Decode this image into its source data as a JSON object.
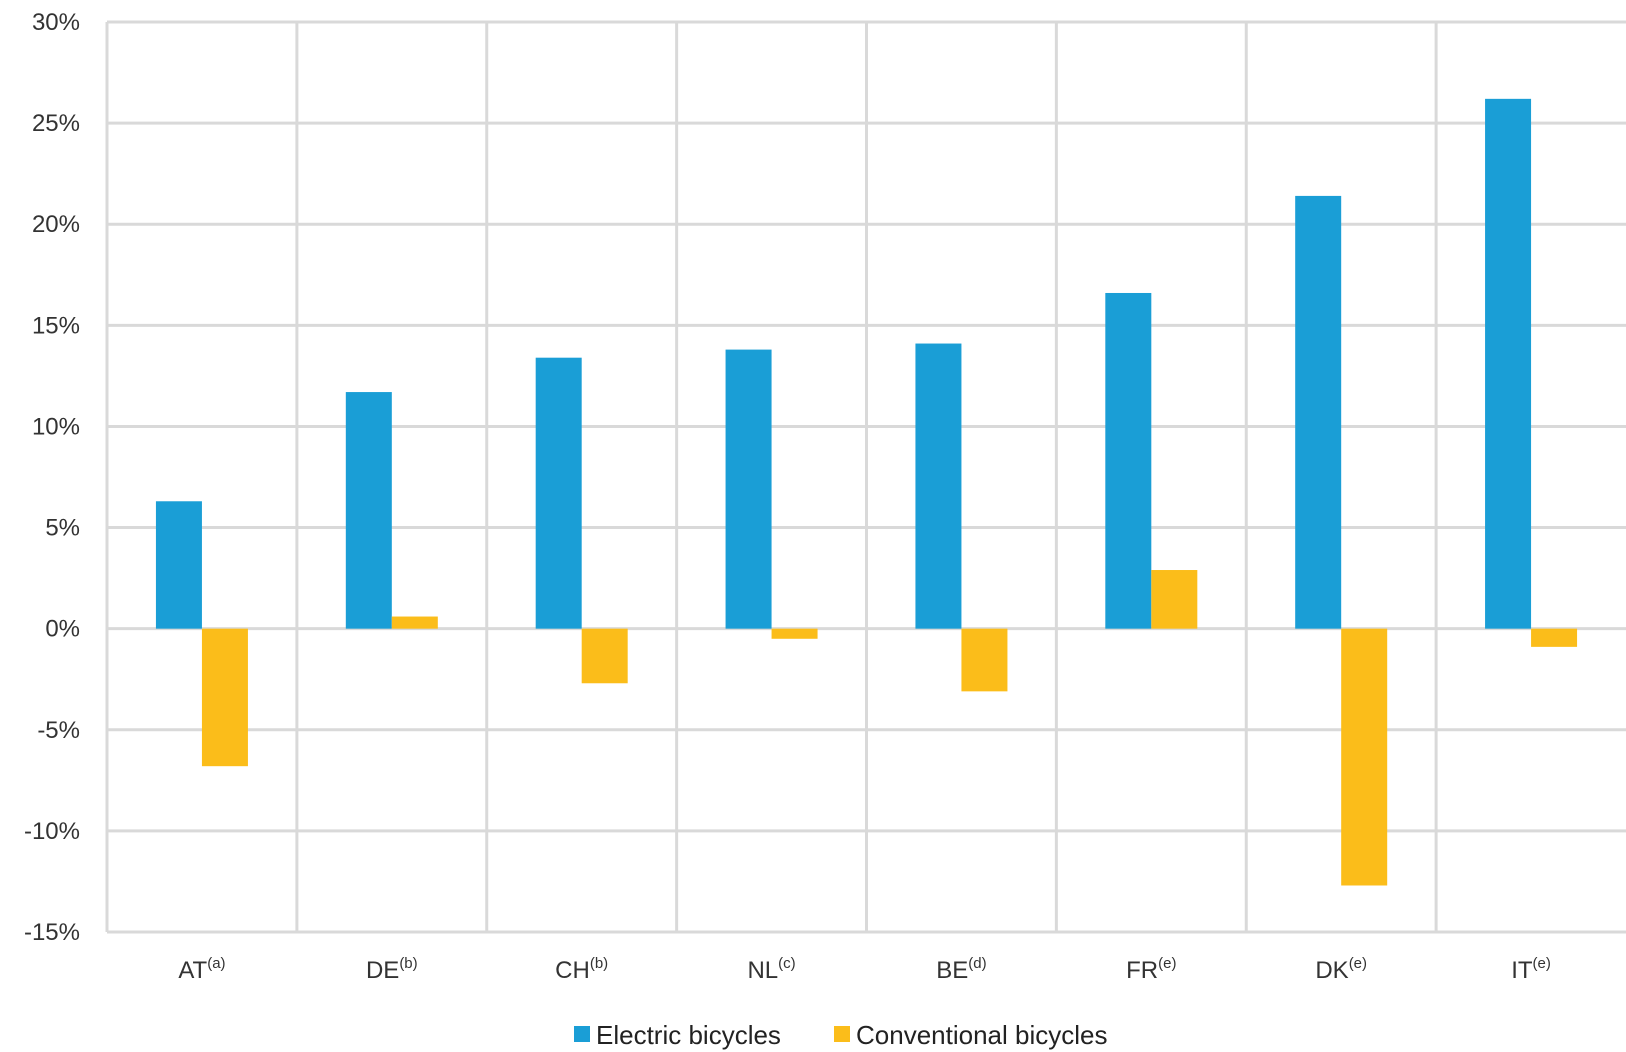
{
  "chart_data": {
    "type": "bar",
    "categories": [
      {
        "name": "AT",
        "note": "(a)"
      },
      {
        "name": "DE",
        "note": "(b)"
      },
      {
        "name": "CH",
        "note": "(b)"
      },
      {
        "name": "NL",
        "note": "(c)"
      },
      {
        "name": "BE",
        "note": "(d)"
      },
      {
        "name": "FR",
        "note": "(e)"
      },
      {
        "name": "DK",
        "note": "(e)"
      },
      {
        "name": "IT",
        "note": "(e)"
      }
    ],
    "series": [
      {
        "name": "Electric bicycles",
        "color": "#1a9ed6",
        "values": [
          6.3,
          11.7,
          13.4,
          13.8,
          14.1,
          16.6,
          21.4,
          26.2
        ]
      },
      {
        "name": "Conventional bicycles",
        "color": "#fbbd1a",
        "values": [
          -6.8,
          0.6,
          -2.7,
          -0.5,
          -3.1,
          2.9,
          -12.7,
          -0.9
        ]
      }
    ],
    "ylim": [
      -15,
      30
    ],
    "yticks": [
      30,
      25,
      20,
      15,
      10,
      5,
      0,
      -5,
      -10,
      -15
    ],
    "ytick_labels": [
      "30%",
      "25%",
      "20%",
      "15%",
      "10%",
      "5%",
      "0%",
      "-5%",
      "-10%",
      "-15%"
    ],
    "grid": true,
    "legend_position": "bottom",
    "grid_color": "#d9d9d9"
  }
}
